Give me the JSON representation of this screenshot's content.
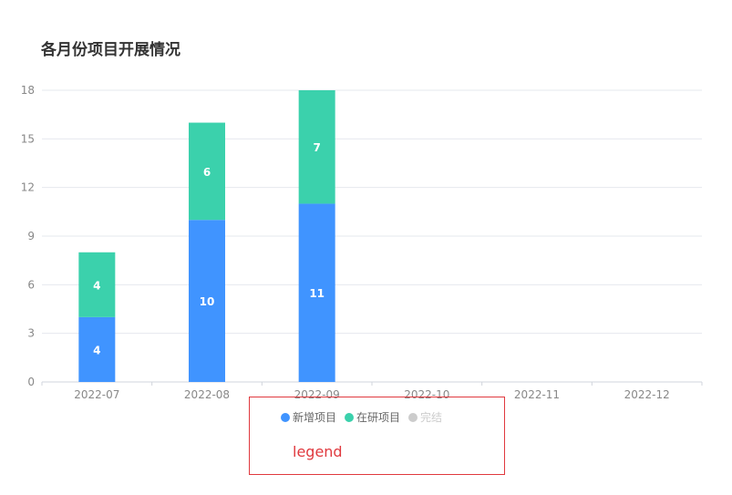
{
  "title": "各月份项目开展情况",
  "annotation": {
    "text": "legend",
    "color": "#e0393e"
  },
  "legend": {
    "items": [
      {
        "name": "新增项目",
        "color": "#4094ff",
        "active": true
      },
      {
        "name": "在研项目",
        "color": "#3bd1ac",
        "active": true
      },
      {
        "name": "完结",
        "color": "#cccccc",
        "active": false
      }
    ]
  },
  "chart_data": {
    "type": "bar",
    "stacked": true,
    "title": "各月份项目开展情况",
    "categories": [
      "2022-07",
      "2022-08",
      "2022-09",
      "2022-10",
      "2022-11",
      "2022-12"
    ],
    "series": [
      {
        "name": "新增项目",
        "values": [
          4,
          10,
          11,
          0,
          0,
          0
        ],
        "color": "#4094ff"
      },
      {
        "name": "在研项目",
        "values": [
          4,
          6,
          7,
          0,
          0,
          0
        ],
        "color": "#3bd1ac"
      },
      {
        "name": "完结",
        "values": [
          0,
          0,
          0,
          0,
          0,
          0
        ],
        "color": "#cccccc",
        "hidden": true
      }
    ],
    "yticks": [
      0,
      3,
      6,
      9,
      12,
      15,
      18
    ],
    "ylim": [
      0,
      18
    ],
    "grid": true,
    "legend_position": "bottom"
  }
}
